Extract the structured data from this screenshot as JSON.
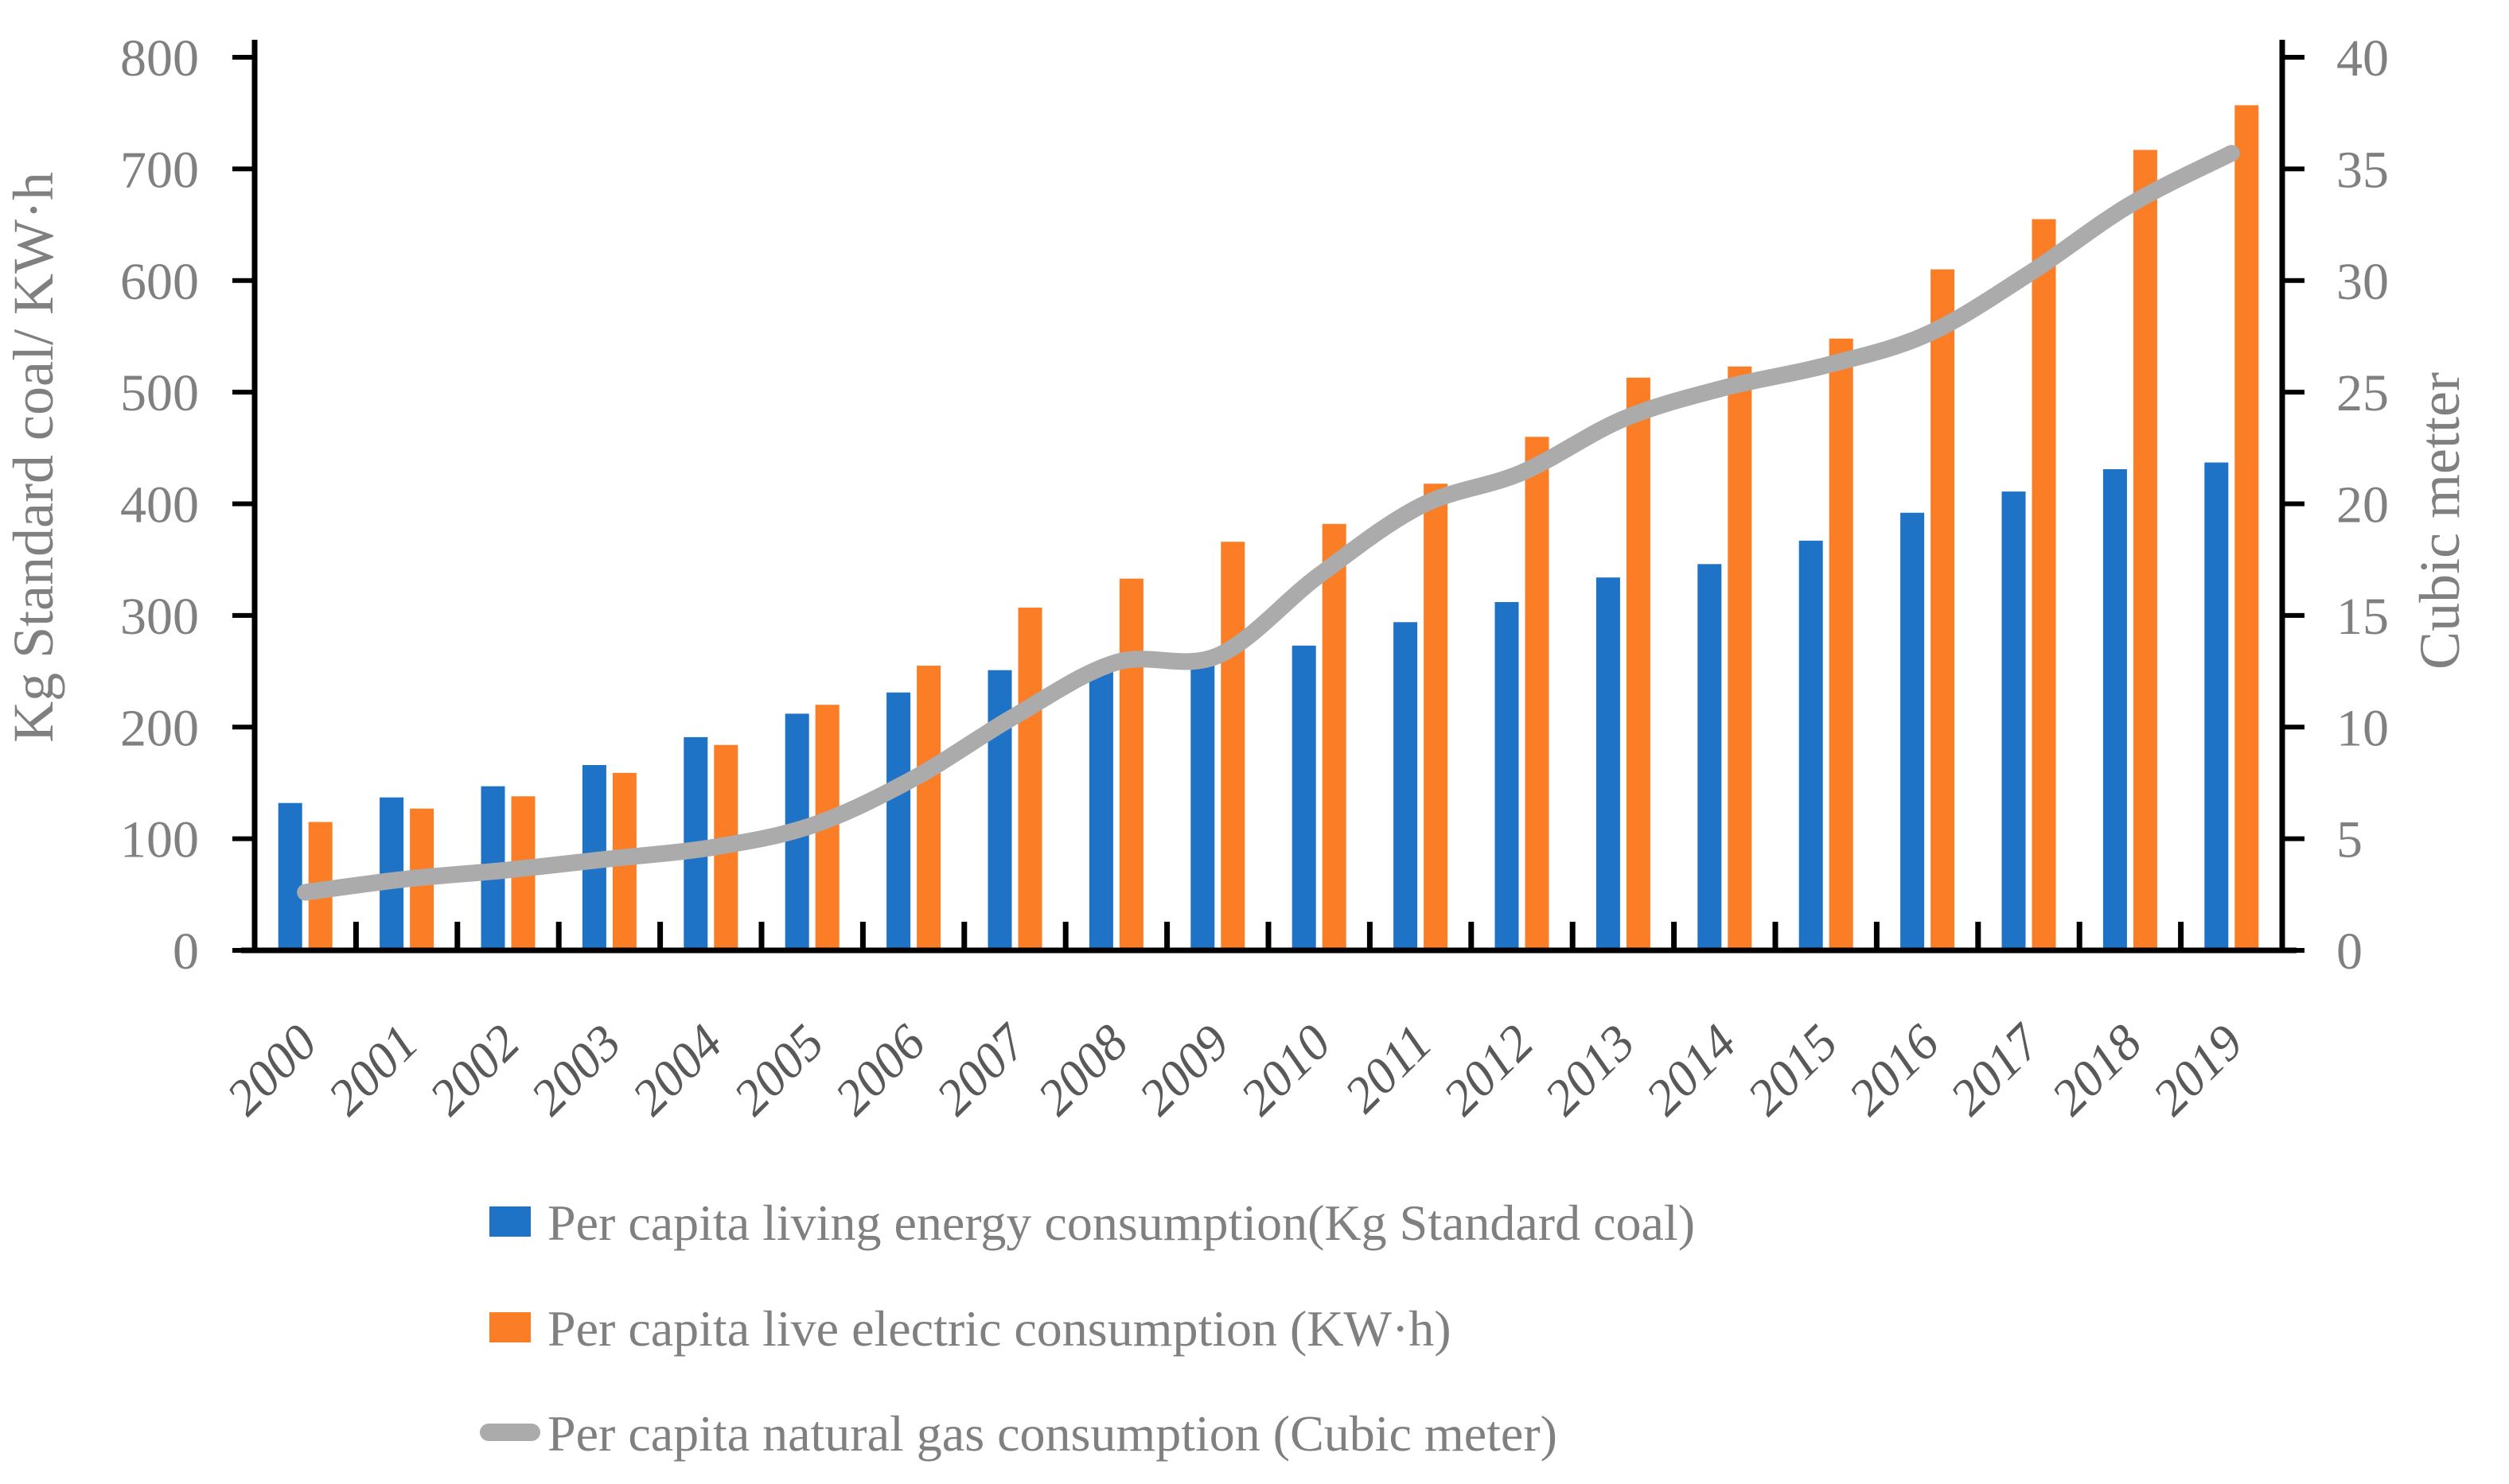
{
  "chart_data": {
    "type": "bar+line",
    "categories": [
      "2000",
      "2001",
      "2002",
      "2003",
      "2004",
      "2005",
      "2006",
      "2007",
      "2008",
      "2009",
      "2010",
      "2011",
      "2012",
      "2013",
      "2014",
      "2015",
      "2016",
      "2017",
      "2018",
      "2019"
    ],
    "series": [
      {
        "name": "Per capita living energy consumption(Kg Standard coal)",
        "type": "bar",
        "axis": "left",
        "color": "#1E73C6",
        "values": [
          132,
          137,
          147,
          166,
          191,
          212,
          231,
          251,
          253,
          257,
          273,
          294,
          312,
          334,
          346,
          367,
          392,
          411,
          431,
          437
        ]
      },
      {
        "name": "Per capita live electric consumption (KW·h)",
        "type": "bar",
        "axis": "left",
        "color": "#FB7D25",
        "values": [
          115,
          127,
          138,
          159,
          184,
          220,
          255,
          307,
          333,
          366,
          382,
          418,
          460,
          513,
          523,
          548,
          610,
          655,
          717,
          757
        ]
      },
      {
        "name": "Per capita natural gas consumption (Cubic meter)",
        "type": "line",
        "axis": "right",
        "color": "#ABABAB",
        "values": [
          2.6,
          3.2,
          3.6,
          4.1,
          4.6,
          5.6,
          7.7,
          10.5,
          12.9,
          13.2,
          16.8,
          19.9,
          21.4,
          23.8,
          25.2,
          26.2,
          27.6,
          30.3,
          33.4,
          35.7
        ]
      }
    ],
    "left_axis": {
      "label": "Kg Standard coal/ KW·h",
      "min": 0,
      "max": 800,
      "step": 100,
      "ticks": [
        "0",
        "100",
        "200",
        "300",
        "400",
        "500",
        "600",
        "700",
        "800"
      ]
    },
    "right_axis": {
      "label": "Cubic metter",
      "min": 0,
      "max": 40,
      "step": 5,
      "ticks": [
        "0",
        "5",
        "10",
        "15",
        "20",
        "25",
        "30",
        "35",
        "40"
      ]
    },
    "legend_position": "bottom",
    "grid": false,
    "styles": {
      "axis_line_color": "#000000",
      "tick_label_color": "#808080",
      "year_label_color": "#595959",
      "axis_title_color": "#808080",
      "legend_text_color": "#808080",
      "background": "#ffffff"
    }
  }
}
